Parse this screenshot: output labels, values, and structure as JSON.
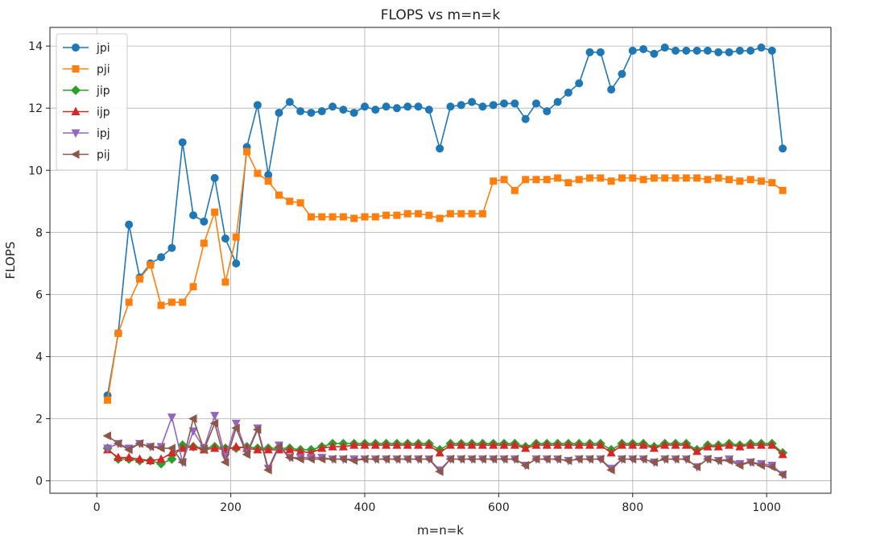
{
  "chart_data": {
    "type": "line",
    "title": "FLOPS vs m=n=k",
    "xlabel": "m=n=k",
    "ylabel": "FLOPS",
    "xlim": [
      -70,
      1096
    ],
    "ylim": [
      -0.4,
      14.6
    ],
    "xticks": [
      0,
      200,
      400,
      600,
      800,
      1000
    ],
    "yticks": [
      0,
      2,
      4,
      6,
      8,
      10,
      12,
      14
    ],
    "grid": true,
    "legend_position": "top-left",
    "x": [
      16,
      32,
      48,
      64,
      80,
      96,
      112,
      128,
      144,
      160,
      176,
      192,
      208,
      224,
      240,
      256,
      272,
      288,
      304,
      320,
      336,
      352,
      368,
      384,
      400,
      416,
      432,
      448,
      464,
      480,
      496,
      512,
      528,
      544,
      560,
      576,
      592,
      608,
      624,
      640,
      656,
      672,
      688,
      704,
      720,
      736,
      752,
      768,
      784,
      800,
      816,
      832,
      848,
      864,
      880,
      896,
      912,
      928,
      944,
      960,
      976,
      992,
      1008,
      1024
    ],
    "series": [
      {
        "name": "jpi",
        "color": "#1f77b4",
        "marker": "circle",
        "values": [
          2.75,
          4.75,
          8.25,
          6.55,
          7.0,
          7.2,
          7.5,
          10.9,
          8.55,
          8.35,
          9.75,
          7.8,
          7.0,
          10.75,
          12.1,
          9.85,
          11.85,
          12.2,
          11.9,
          11.85,
          11.9,
          12.05,
          11.95,
          11.85,
          12.05,
          11.95,
          12.05,
          12.0,
          12.05,
          12.05,
          11.95,
          10.7,
          12.05,
          12.1,
          12.2,
          12.05,
          12.1,
          12.15,
          12.15,
          11.65,
          12.15,
          11.9,
          12.2,
          12.5,
          12.8,
          13.8,
          13.8,
          12.6,
          13.1,
          13.85,
          13.9,
          13.75,
          13.95,
          13.85,
          13.85,
          13.85,
          13.85,
          13.8,
          13.8,
          13.85,
          13.85,
          13.95,
          13.85,
          10.7
        ]
      },
      {
        "name": "pji",
        "color": "#ff7f0e",
        "marker": "square",
        "values": [
          2.6,
          4.75,
          5.75,
          6.5,
          6.95,
          5.65,
          5.75,
          5.75,
          6.25,
          7.65,
          8.65,
          6.4,
          7.85,
          10.6,
          9.9,
          9.65,
          9.2,
          9.0,
          8.95,
          8.5,
          8.5,
          8.5,
          8.5,
          8.45,
          8.5,
          8.5,
          8.55,
          8.55,
          8.6,
          8.6,
          8.55,
          8.45,
          8.6,
          8.6,
          8.6,
          8.6,
          9.65,
          9.7,
          9.35,
          9.7,
          9.7,
          9.7,
          9.75,
          9.6,
          9.7,
          9.75,
          9.75,
          9.65,
          9.75,
          9.75,
          9.7,
          9.75,
          9.75,
          9.75,
          9.75,
          9.75,
          9.7,
          9.75,
          9.7,
          9.65,
          9.7,
          9.65,
          9.6,
          9.35
        ]
      },
      {
        "name": "jip",
        "color": "#2ca02c",
        "marker": "diamond",
        "values": [
          1.05,
          0.7,
          0.7,
          0.65,
          0.65,
          0.55,
          0.7,
          1.15,
          1.1,
          1.05,
          1.1,
          1.05,
          1.05,
          1.1,
          1.05,
          1.05,
          1.05,
          1.05,
          1.0,
          1.0,
          1.1,
          1.2,
          1.2,
          1.2,
          1.2,
          1.2,
          1.2,
          1.2,
          1.2,
          1.2,
          1.2,
          1.0,
          1.2,
          1.2,
          1.2,
          1.2,
          1.2,
          1.2,
          1.2,
          1.1,
          1.2,
          1.2,
          1.2,
          1.2,
          1.2,
          1.2,
          1.2,
          1.0,
          1.2,
          1.2,
          1.2,
          1.1,
          1.2,
          1.2,
          1.2,
          1.0,
          1.15,
          1.15,
          1.2,
          1.15,
          1.2,
          1.2,
          1.2,
          0.9
        ]
      },
      {
        "name": "ijp",
        "color": "#d62728",
        "marker": "triangle-up",
        "values": [
          1.0,
          0.75,
          0.75,
          0.7,
          0.65,
          0.7,
          0.9,
          1.05,
          1.1,
          1.0,
          1.05,
          1.0,
          1.1,
          1.05,
          1.0,
          1.0,
          1.0,
          1.0,
          0.95,
          0.9,
          1.05,
          1.1,
          1.1,
          1.15,
          1.15,
          1.15,
          1.15,
          1.15,
          1.15,
          1.15,
          1.15,
          0.9,
          1.15,
          1.15,
          1.15,
          1.15,
          1.15,
          1.15,
          1.15,
          1.05,
          1.15,
          1.15,
          1.15,
          1.15,
          1.15,
          1.15,
          1.15,
          0.9,
          1.15,
          1.15,
          1.15,
          1.05,
          1.15,
          1.15,
          1.15,
          0.95,
          1.1,
          1.1,
          1.15,
          1.1,
          1.15,
          1.15,
          1.15,
          0.85
        ]
      },
      {
        "name": "ipj",
        "color": "#9467bd",
        "marker": "triangle-down",
        "values": [
          1.05,
          1.2,
          1.05,
          1.2,
          1.1,
          1.1,
          2.05,
          0.6,
          1.6,
          1.05,
          2.1,
          0.75,
          1.85,
          0.9,
          1.7,
          0.4,
          1.15,
          0.75,
          0.75,
          0.75,
          0.75,
          0.7,
          0.7,
          0.7,
          0.7,
          0.7,
          0.7,
          0.7,
          0.7,
          0.7,
          0.7,
          0.35,
          0.7,
          0.7,
          0.7,
          0.7,
          0.7,
          0.7,
          0.7,
          0.5,
          0.7,
          0.7,
          0.7,
          0.65,
          0.7,
          0.7,
          0.7,
          0.4,
          0.7,
          0.7,
          0.7,
          0.6,
          0.7,
          0.7,
          0.7,
          0.45,
          0.7,
          0.65,
          0.7,
          0.55,
          0.6,
          0.55,
          0.5,
          0.2
        ]
      },
      {
        "name": "pij",
        "color": "#8c564b",
        "marker": "triangle-left",
        "values": [
          1.45,
          1.2,
          1.0,
          1.2,
          1.1,
          1.05,
          1.05,
          0.6,
          2.0,
          1.0,
          1.85,
          0.6,
          1.7,
          0.85,
          1.65,
          0.35,
          1.1,
          0.75,
          0.7,
          0.7,
          0.7,
          0.7,
          0.7,
          0.65,
          0.7,
          0.7,
          0.7,
          0.7,
          0.7,
          0.7,
          0.7,
          0.3,
          0.7,
          0.7,
          0.7,
          0.7,
          0.7,
          0.7,
          0.7,
          0.5,
          0.7,
          0.7,
          0.7,
          0.65,
          0.7,
          0.7,
          0.7,
          0.35,
          0.7,
          0.7,
          0.7,
          0.6,
          0.7,
          0.7,
          0.7,
          0.45,
          0.7,
          0.65,
          0.65,
          0.5,
          0.6,
          0.5,
          0.45,
          0.2
        ]
      }
    ]
  }
}
